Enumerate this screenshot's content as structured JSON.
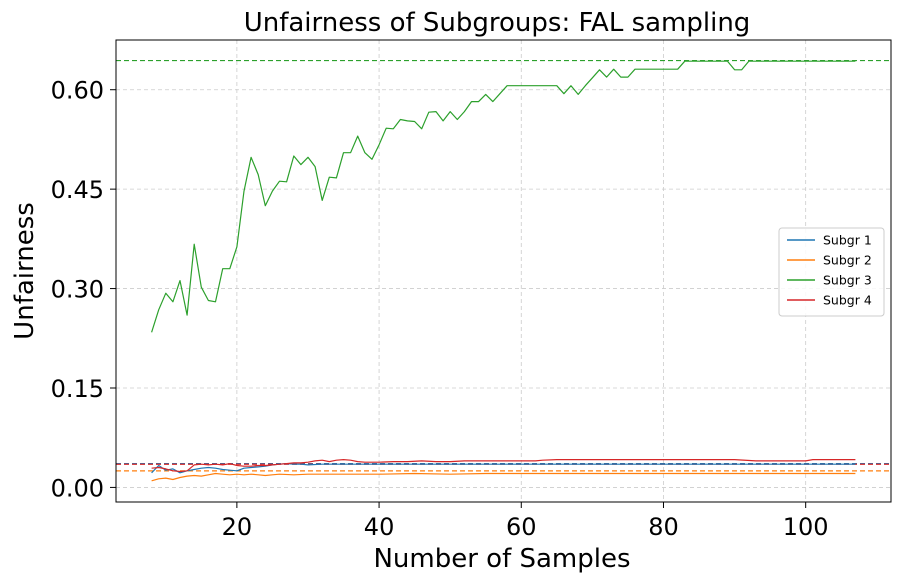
{
  "chart_data": {
    "type": "line",
    "title": "Unfairness of Subgroups: FAL sampling",
    "xlabel": "Number of Samples",
    "ylabel": "Unfairness",
    "xlim": [
      3,
      112
    ],
    "ylim": [
      -0.022,
      0.675
    ],
    "x_ticks": [
      20,
      40,
      60,
      80,
      100
    ],
    "x_tick_labels": [
      "20",
      "40",
      "60",
      "80",
      "100"
    ],
    "y_ticks": [
      0.0,
      0.15,
      0.3,
      0.45,
      0.6
    ],
    "y_tick_labels": [
      "0.00",
      "0.15",
      "0.30",
      "0.45",
      "0.60"
    ],
    "grid": true,
    "legend_position": "center-right",
    "series": [
      {
        "name": "Subgr 1",
        "color": "#1f77b4",
        "x": [
          8,
          9,
          10,
          11,
          12,
          13,
          14,
          15,
          16,
          17,
          18,
          19,
          20,
          21,
          22,
          23,
          24,
          25,
          26,
          27,
          28,
          29,
          30,
          32,
          35,
          40,
          45,
          50,
          55,
          60,
          65,
          70,
          75,
          80,
          85,
          90,
          95,
          100,
          107
        ],
        "values": [
          0.022,
          0.033,
          0.026,
          0.028,
          0.022,
          0.025,
          0.027,
          0.029,
          0.03,
          0.029,
          0.027,
          0.026,
          0.025,
          0.029,
          0.03,
          0.031,
          0.032,
          0.034,
          0.035,
          0.036,
          0.035,
          0.035,
          0.034,
          0.035,
          0.035,
          0.035,
          0.035,
          0.035,
          0.035,
          0.035,
          0.035,
          0.035,
          0.035,
          0.035,
          0.035,
          0.035,
          0.035,
          0.035,
          0.035
        ]
      },
      {
        "name": "Subgr 2",
        "color": "#ff7f0e",
        "x": [
          8,
          9,
          10,
          11,
          12,
          13,
          14,
          15,
          16,
          17,
          18,
          19,
          20,
          21,
          22,
          23,
          24,
          25,
          26,
          28,
          30,
          35,
          40,
          45,
          50,
          55,
          60,
          65,
          70,
          75,
          80,
          85,
          90,
          95,
          100,
          107
        ],
        "values": [
          0.01,
          0.013,
          0.014,
          0.012,
          0.015,
          0.017,
          0.018,
          0.017,
          0.019,
          0.021,
          0.02,
          0.019,
          0.02,
          0.019,
          0.02,
          0.019,
          0.018,
          0.019,
          0.02,
          0.019,
          0.02,
          0.02,
          0.02,
          0.021,
          0.02,
          0.021,
          0.021,
          0.021,
          0.021,
          0.021,
          0.021,
          0.021,
          0.021,
          0.021,
          0.021,
          0.021
        ]
      },
      {
        "name": "Subgr 3",
        "color": "#2ca02c",
        "x": [
          8,
          9,
          10,
          11,
          12,
          13,
          14,
          15,
          16,
          17,
          18,
          19,
          20,
          21,
          22,
          23,
          24,
          25,
          26,
          27,
          28,
          29,
          30,
          31,
          32,
          33,
          34,
          35,
          36,
          37,
          38,
          39,
          40,
          41,
          42,
          43,
          44,
          45,
          46,
          47,
          48,
          49,
          50,
          51,
          52,
          53,
          54,
          55,
          56,
          57,
          58,
          59,
          60,
          61,
          62,
          63,
          64,
          65,
          66,
          67,
          68,
          69,
          70,
          71,
          72,
          73,
          74,
          75,
          76,
          77,
          78,
          79,
          80,
          81,
          82,
          83,
          84,
          85,
          86,
          87,
          88,
          89,
          90,
          91,
          92,
          93,
          94,
          95,
          96,
          97,
          98,
          99,
          100,
          101,
          102,
          103,
          104,
          105,
          106,
          107
        ],
        "values": [
          0.234,
          0.268,
          0.293,
          0.28,
          0.312,
          0.26,
          0.367,
          0.302,
          0.282,
          0.28,
          0.33,
          0.33,
          0.363,
          0.447,
          0.498,
          0.472,
          0.425,
          0.447,
          0.462,
          0.461,
          0.5,
          0.487,
          0.498,
          0.484,
          0.433,
          0.468,
          0.467,
          0.505,
          0.505,
          0.53,
          0.505,
          0.495,
          0.517,
          0.542,
          0.541,
          0.555,
          0.553,
          0.552,
          0.541,
          0.566,
          0.567,
          0.553,
          0.567,
          0.555,
          0.567,
          0.582,
          0.582,
          0.593,
          0.582,
          0.594,
          0.606,
          0.606,
          0.606,
          0.606,
          0.606,
          0.606,
          0.606,
          0.606,
          0.594,
          0.606,
          0.593,
          0.606,
          0.618,
          0.63,
          0.619,
          0.631,
          0.619,
          0.619,
          0.631,
          0.631,
          0.631,
          0.631,
          0.631,
          0.631,
          0.631,
          0.643,
          0.643,
          0.643,
          0.643,
          0.643,
          0.643,
          0.643,
          0.63,
          0.63,
          0.643,
          0.643,
          0.643,
          0.643,
          0.643,
          0.643,
          0.643,
          0.643,
          0.643,
          0.643,
          0.643,
          0.643,
          0.643,
          0.643,
          0.643,
          0.643
        ]
      },
      {
        "name": "Subgr 4",
        "color": "#d62728",
        "x": [
          8,
          9,
          10,
          11,
          12,
          13,
          14,
          15,
          16,
          17,
          18,
          19,
          20,
          21,
          22,
          23,
          24,
          25,
          26,
          27,
          28,
          29,
          30,
          31,
          32,
          33,
          34,
          35,
          36,
          37,
          38,
          40,
          42,
          44,
          46,
          48,
          50,
          52,
          55,
          58,
          60,
          62,
          63,
          65,
          70,
          75,
          80,
          85,
          90,
          93,
          95,
          100,
          101,
          102,
          103,
          107
        ],
        "values": [
          0.029,
          0.03,
          0.028,
          0.025,
          0.024,
          0.025,
          0.034,
          0.035,
          0.034,
          0.035,
          0.034,
          0.036,
          0.033,
          0.032,
          0.032,
          0.033,
          0.033,
          0.034,
          0.035,
          0.036,
          0.037,
          0.037,
          0.038,
          0.04,
          0.041,
          0.039,
          0.041,
          0.042,
          0.041,
          0.039,
          0.038,
          0.038,
          0.039,
          0.039,
          0.04,
          0.039,
          0.039,
          0.04,
          0.04,
          0.04,
          0.04,
          0.04,
          0.041,
          0.042,
          0.042,
          0.042,
          0.042,
          0.042,
          0.042,
          0.04,
          0.04,
          0.04,
          0.042,
          0.042,
          0.042,
          0.042
        ]
      }
    ],
    "reference_lines": [
      {
        "series": "Subgr 1",
        "y": 0.036,
        "color": "#1f77b4"
      },
      {
        "series": "Subgr 2",
        "y": 0.025,
        "color": "#ff7f0e"
      },
      {
        "series": "Subgr 3",
        "y": 0.644,
        "color": "#2ca02c"
      },
      {
        "series": "Subgr 4",
        "y": 0.035,
        "color": "#d62728"
      }
    ]
  }
}
